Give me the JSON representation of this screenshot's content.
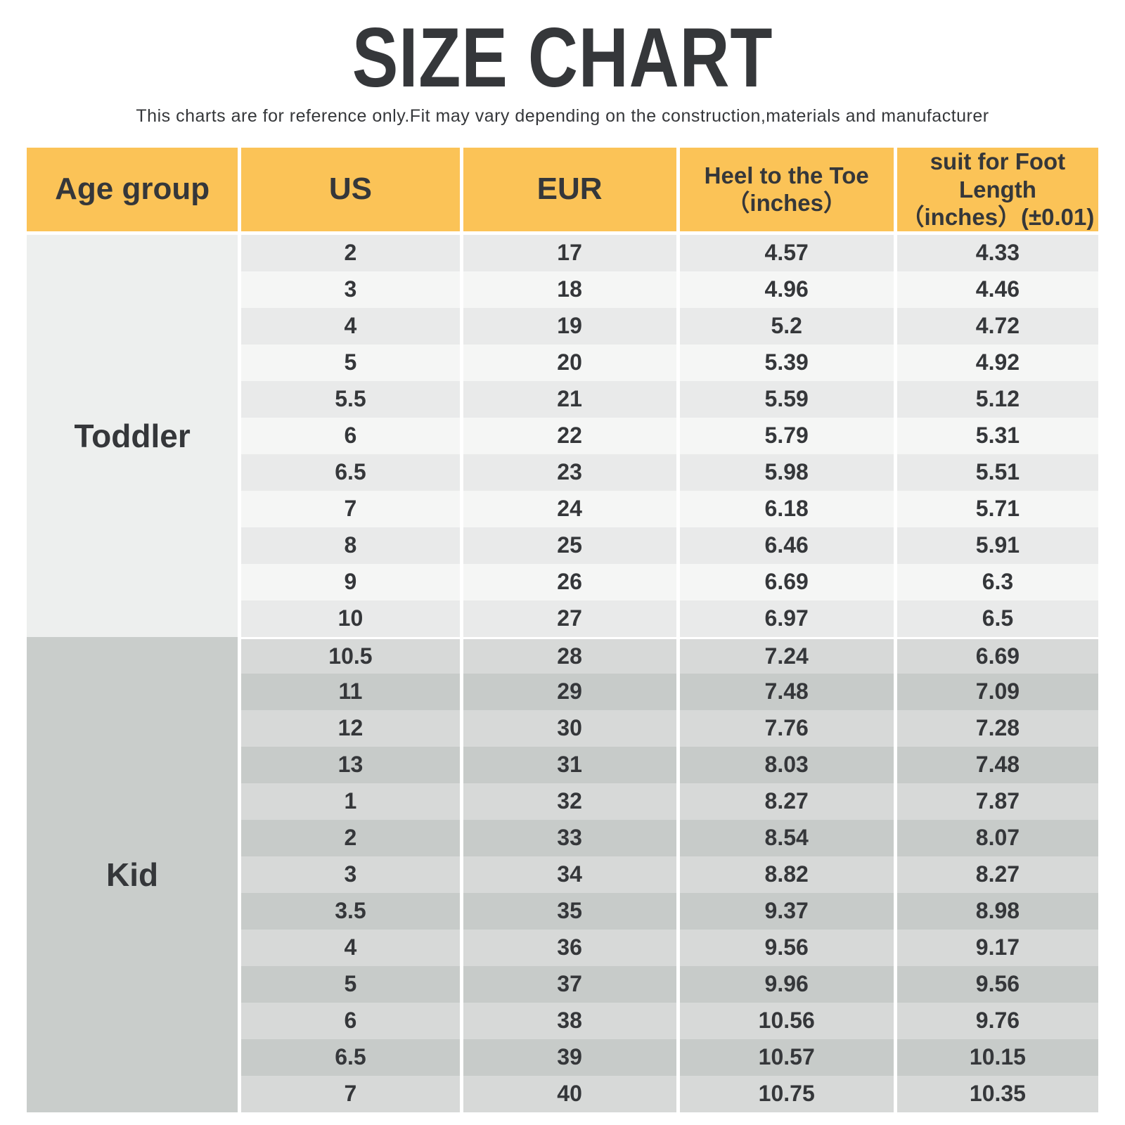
{
  "page": {
    "title": "SIZE CHART",
    "subtitle": "This charts are for reference only.Fit may vary depending on the construction,materials and manufacturer"
  },
  "theme": {
    "page_bg": "#FFFFFF",
    "text_color": "#35373A",
    "header_bg": "#FBC357",
    "toddler_age_bg": "#EDEFEE",
    "kid_age_bg": "#C9CDCB",
    "toddler_row_a": "#E9EAEA",
    "toddler_row_b": "#F5F6F5",
    "kid_row_a": "#D7D9D8",
    "kid_row_b": "#C7CBC9"
  },
  "chart_data": {
    "type": "table",
    "title": "SIZE CHART",
    "subtitle": "This charts are for reference only.Fit may vary depending on the construction,materials and manufacturer",
    "columns": [
      {
        "id": "age",
        "label": "Age group"
      },
      {
        "id": "us",
        "label": "US"
      },
      {
        "id": "eur",
        "label": "EUR"
      },
      {
        "id": "heel",
        "label": "Heel to the Toe",
        "sub": "（inches）"
      },
      {
        "id": "foot",
        "label": "suit for Foot Length",
        "sub": "（inches）(±0.01)"
      }
    ],
    "sections": [
      {
        "age_group": "Toddler",
        "rows": [
          [
            "2",
            "17",
            "4.57",
            "4.33"
          ],
          [
            "3",
            "18",
            "4.96",
            "4.46"
          ],
          [
            "4",
            "19",
            "5.2",
            "4.72"
          ],
          [
            "5",
            "20",
            "5.39",
            "4.92"
          ],
          [
            "5.5",
            "21",
            "5.59",
            "5.12"
          ],
          [
            "6",
            "22",
            "5.79",
            "5.31"
          ],
          [
            "6.5",
            "23",
            "5.98",
            "5.51"
          ],
          [
            "7",
            "24",
            "6.18",
            "5.71"
          ],
          [
            "8",
            "25",
            "6.46",
            "5.91"
          ],
          [
            "9",
            "26",
            "6.69",
            "6.3"
          ],
          [
            "10",
            "27",
            "6.97",
            "6.5"
          ]
        ]
      },
      {
        "age_group": "Kid",
        "rows": [
          [
            "10.5",
            "28",
            "7.24",
            "6.69"
          ],
          [
            "11",
            "29",
            "7.48",
            "7.09"
          ],
          [
            "12",
            "30",
            "7.76",
            "7.28"
          ],
          [
            "13",
            "31",
            "8.03",
            "7.48"
          ],
          [
            "1",
            "32",
            "8.27",
            "7.87"
          ],
          [
            "2",
            "33",
            "8.54",
            "8.07"
          ],
          [
            "3",
            "34",
            "8.82",
            "8.27"
          ],
          [
            "3.5",
            "35",
            "9.37",
            "8.98"
          ],
          [
            "4",
            "36",
            "9.56",
            "9.17"
          ],
          [
            "5",
            "37",
            "9.96",
            "9.56"
          ],
          [
            "6",
            "38",
            "10.56",
            "9.76"
          ],
          [
            "6.5",
            "39",
            "10.57",
            "10.15"
          ],
          [
            "7",
            "40",
            "10.75",
            "10.35"
          ]
        ]
      }
    ]
  }
}
